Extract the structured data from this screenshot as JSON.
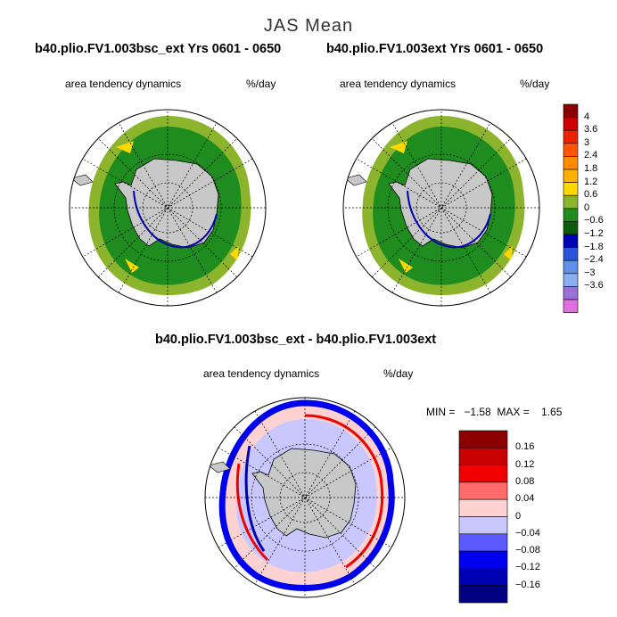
{
  "main_title": "JAS Mean",
  "panels": [
    {
      "title": "b40.plio.FV1.003bsc_ext  Yrs 0601 - 0650",
      "subtitle": "area tendency dynamics",
      "units": "%/day"
    },
    {
      "title": "b40.plio.FV1.003ext  Yrs 0601 - 0650",
      "subtitle": "area tendency dynamics",
      "units": "%/day"
    },
    {
      "title": "b40.plio.FV1.003bsc_ext - b40.plio.FV1.003ext",
      "subtitle": "area tendency dynamics",
      "units": "%/day"
    }
  ],
  "min_max": "MIN =   −1.58  MAX =    1.65",
  "colorbar_top": {
    "labels": [
      "4",
      "3.6",
      "3",
      "2.4",
      "1.8",
      "1.2",
      "0.6",
      "0",
      "−0.6",
      "−1.2",
      "−1.8",
      "−2.4",
      "−3",
      "−3.6"
    ],
    "colors": [
      "#8b0000",
      "#cc0000",
      "#ee2200",
      "#ff5500",
      "#ff8c00",
      "#ffb000",
      "#ffd800",
      "#8db42d",
      "#1e8c1e",
      "#0c5c0c",
      "#0000b4",
      "#2855dc",
      "#5f8fe8",
      "#8cafef",
      "#9b70d8",
      "#e070e0"
    ]
  },
  "colorbar_diff": {
    "labels": [
      "0.16",
      "0.12",
      "0.08",
      "0.04",
      "0",
      "−0.04",
      "−0.08",
      "−0.12",
      "−0.16"
    ],
    "colors": [
      "#8b0000",
      "#c80000",
      "#f00000",
      "#ff6a6a",
      "#ffd2d2",
      "#c8c8ff",
      "#5a5aff",
      "#0000f0",
      "#0000b4",
      "#000080"
    ]
  }
}
